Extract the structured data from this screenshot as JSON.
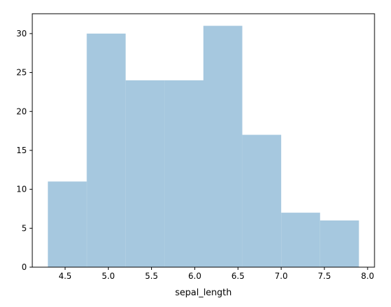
{
  "chart_data": {
    "type": "bar",
    "title": "",
    "xlabel": "sepal_length",
    "ylabel": "",
    "bin_edges": [
      4.3,
      4.75,
      5.2,
      5.65,
      6.1,
      6.55,
      7.0,
      7.45,
      7.9
    ],
    "values": [
      11,
      30,
      24,
      24,
      31,
      17,
      7,
      6
    ],
    "xlim": [
      4.12,
      8.08
    ],
    "ylim": [
      0,
      32.55
    ],
    "x_ticks": [
      4.5,
      5.0,
      5.5,
      6.0,
      6.5,
      7.0,
      7.5,
      8.0
    ],
    "x_tick_labels": [
      "4.5",
      "5.0",
      "5.5",
      "6.0",
      "6.5",
      "7.0",
      "7.5",
      "8.0"
    ],
    "y_ticks": [
      0,
      5,
      10,
      15,
      20,
      25,
      30
    ],
    "y_tick_labels": [
      "0",
      "5",
      "10",
      "15",
      "20",
      "25",
      "30"
    ],
    "bar_color": "#a6c8df",
    "grid": false,
    "legend": "none"
  }
}
